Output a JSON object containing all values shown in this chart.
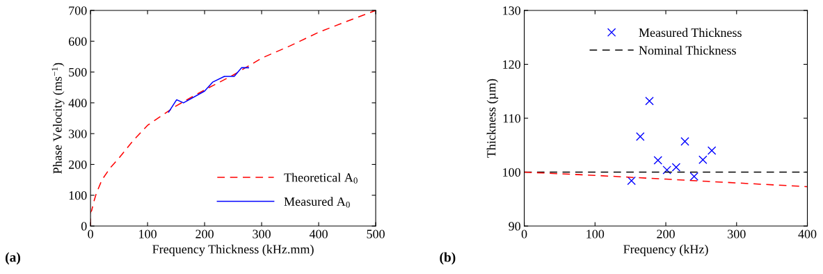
{
  "chart_data": [
    {
      "type": "line",
      "xlabel": "Frequency Thickness (kHz.mm)",
      "ylabel": "Phase Velocity (ms$^{−1}$)",
      "xlim": [
        0,
        500
      ],
      "ylim": [
        0,
        700
      ],
      "xticks": [
        0,
        100,
        200,
        300,
        400,
        500
      ],
      "yticks": [
        0,
        100,
        200,
        300,
        400,
        500,
        600,
        700
      ],
      "grid": false,
      "legend": "bottom right",
      "annotations": [
        "(a)"
      ],
      "series": [
        {
          "name": "Theoretical A$_{0}$",
          "color": "#ff0000",
          "line_style": "dashed",
          "x": [
            0,
            0,
            2,
            5,
            10,
            20,
            35,
            50,
            75,
            100,
            150,
            200,
            250,
            300,
            350,
            400,
            450,
            500
          ],
          "values": [
            0,
            45,
            50,
            74,
            105,
            150,
            190,
            221,
            278,
            327,
            390,
            442,
            490,
            545,
            585,
            629,
            665,
            700
          ]
        },
        {
          "name": "Measured A$_{0}$",
          "color": "#0000ff",
          "line_style": "solid",
          "x": [
            137,
            151,
            163,
            200,
            214,
            235,
            252,
            265,
            277
          ],
          "values": [
            370,
            410,
            400,
            438,
            467,
            486,
            486,
            514,
            514
          ]
        }
      ]
    },
    {
      "type": "scatter",
      "xlabel": "Frequency (kHz)",
      "ylabel": "Thickness (µm)",
      "xlim": [
        0,
        400
      ],
      "ylim": [
        90,
        130
      ],
      "xticks": [
        0,
        100,
        200,
        300,
        400
      ],
      "yticks": [
        90,
        100,
        110,
        120,
        130
      ],
      "grid": false,
      "legend": "top",
      "annotations": [
        "(b)"
      ],
      "series": [
        {
          "name": "Measured Thickness",
          "color": "#0000ff",
          "marker": "cross",
          "x": [
            151.5,
            163.9,
            176.9,
            188.9,
            201.6,
            214.6,
            227,
            240,
            252.4,
            265
          ],
          "values": [
            98.4,
            106.6,
            113.2,
            102.2,
            100.4,
            100.9,
            105.7,
            99.2,
            102.3,
            104.0
          ]
        },
        {
          "name": "Nominal Thickness",
          "type": "line",
          "color": "#000000",
          "line_style": "dashed",
          "x": [
            0,
            400
          ],
          "values": [
            100,
            100
          ]
        },
        {
          "type": "line",
          "color": "#ff0000",
          "line_style": "dashed",
          "x": [
            0,
            100,
            200,
            300,
            400
          ],
          "values": [
            100,
            99.4,
            98.7,
            98.0,
            97.3
          ]
        }
      ]
    }
  ]
}
